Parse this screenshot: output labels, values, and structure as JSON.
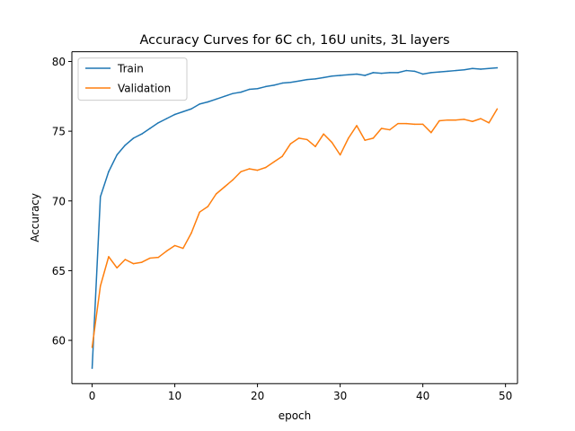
{
  "chart_data": {
    "type": "line",
    "title": "Accuracy Curves for 6C ch, 16U units, 3L layers",
    "xlabel": "epoch",
    "ylabel": "Accuracy",
    "xlim": [
      -2.45,
      51.45
    ],
    "ylim": [
      56.9,
      80.7
    ],
    "xticks": [
      0,
      10,
      20,
      30,
      40,
      50
    ],
    "yticks": [
      60,
      65,
      70,
      75,
      80
    ],
    "x": [
      0,
      1,
      2,
      3,
      4,
      5,
      6,
      7,
      8,
      9,
      10,
      11,
      12,
      13,
      14,
      15,
      16,
      17,
      18,
      19,
      20,
      21,
      22,
      23,
      24,
      25,
      26,
      27,
      28,
      29,
      30,
      31,
      32,
      33,
      34,
      35,
      36,
      37,
      38,
      39,
      40,
      41,
      42,
      43,
      44,
      45,
      46,
      47,
      48,
      49
    ],
    "series": [
      {
        "name": "Train",
        "color": "#1f77b4",
        "values": [
          58.0,
          70.3,
          72.1,
          73.3,
          74.0,
          74.5,
          74.8,
          75.2,
          75.6,
          75.9,
          76.2,
          76.4,
          76.6,
          76.95,
          77.1,
          77.3,
          77.5,
          77.7,
          77.8,
          78.0,
          78.05,
          78.2,
          78.3,
          78.45,
          78.5,
          78.6,
          78.7,
          78.75,
          78.85,
          78.95,
          79.0,
          79.05,
          79.1,
          79.0,
          79.2,
          79.15,
          79.2,
          79.2,
          79.35,
          79.3,
          79.1,
          79.2,
          79.25,
          79.3,
          79.35,
          79.4,
          79.5,
          79.45,
          79.5,
          79.55
        ]
      },
      {
        "name": "Validation",
        "color": "#ff7f0e",
        "values": [
          59.5,
          63.9,
          66.0,
          65.2,
          65.8,
          65.5,
          65.6,
          65.9,
          65.95,
          66.4,
          66.8,
          66.6,
          67.7,
          69.2,
          69.6,
          70.5,
          71.0,
          71.5,
          72.1,
          72.3,
          72.2,
          72.4,
          72.8,
          73.2,
          74.1,
          74.5,
          74.4,
          73.9,
          74.8,
          74.2,
          73.3,
          74.5,
          75.4,
          74.35,
          74.5,
          75.2,
          75.1,
          75.55,
          75.55,
          75.5,
          75.5,
          74.9,
          75.75,
          75.8,
          75.8,
          75.85,
          75.7,
          75.9,
          75.6,
          76.6
        ]
      }
    ],
    "grid": false,
    "legend": "top-left"
  }
}
